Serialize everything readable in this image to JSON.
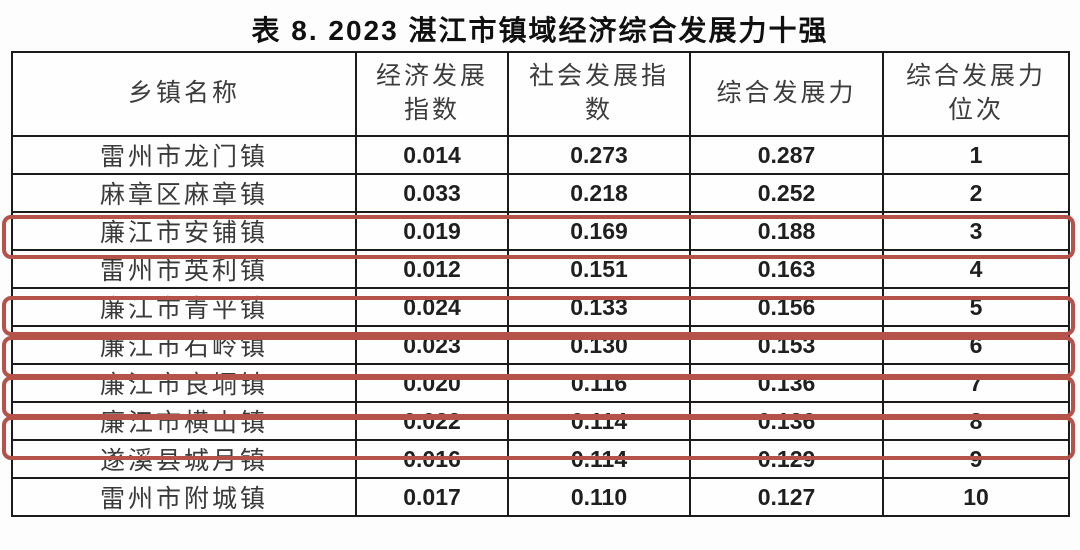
{
  "title": "表 8.  2023 湛江市镇域经济综合发展力十强",
  "table": {
    "columns": [
      "乡镇名称",
      "经济发展\n指数",
      "社会发展指\n数",
      "综合发展力",
      "综合发展力\n位次"
    ],
    "rows": [
      {
        "name": "雷州市龙门镇",
        "eco": "0.014",
        "social": "0.273",
        "comp": "0.287",
        "rank": "1",
        "highlighted": false
      },
      {
        "name": "麻章区麻章镇",
        "eco": "0.033",
        "social": "0.218",
        "comp": "0.252",
        "rank": "2",
        "highlighted": false
      },
      {
        "name": "廉江市安铺镇",
        "eco": "0.019",
        "social": "0.169",
        "comp": "0.188",
        "rank": "3",
        "highlighted": true
      },
      {
        "name": "雷州市英利镇",
        "eco": "0.012",
        "social": "0.151",
        "comp": "0.163",
        "rank": "4",
        "highlighted": false
      },
      {
        "name": "廉江市青平镇",
        "eco": "0.024",
        "social": "0.133",
        "comp": "0.156",
        "rank": "5",
        "highlighted": true
      },
      {
        "name": "廉江市石岭镇",
        "eco": "0.023",
        "social": "0.130",
        "comp": "0.153",
        "rank": "6",
        "highlighted": true
      },
      {
        "name": "廉江市良垌镇",
        "eco": "0.020",
        "social": "0.116",
        "comp": "0.136",
        "rank": "7",
        "highlighted": true
      },
      {
        "name": "廉江市横山镇",
        "eco": "0.022",
        "social": "0.114",
        "comp": "0.136",
        "rank": "8",
        "highlighted": true
      },
      {
        "name": "遂溪县城月镇",
        "eco": "0.016",
        "social": "0.114",
        "comp": "0.129",
        "rank": "9",
        "highlighted": false
      },
      {
        "name": "雷州市附城镇",
        "eco": "0.017",
        "social": "0.110",
        "comp": "0.127",
        "rank": "10",
        "highlighted": false
      }
    ]
  },
  "colors": {
    "highlight_border": "#b5524a",
    "table_border": "#1b1b1b"
  }
}
